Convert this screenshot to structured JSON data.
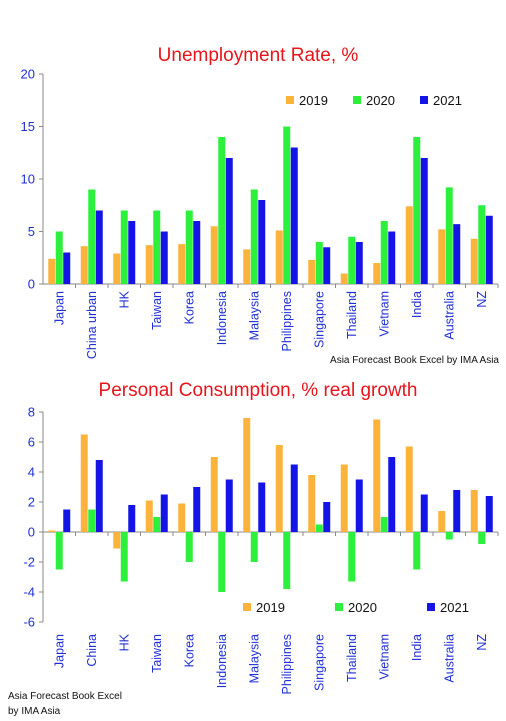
{
  "colors": {
    "2019": "#fbb33c",
    "2020": "#2cf03c",
    "2021": "#1414e6"
  },
  "chart_data": [
    {
      "type": "bar",
      "title": "Unemployment Rate, %",
      "categories": [
        "Japan",
        "China urban",
        "HK",
        "Taiwan",
        "Korea",
        "Indonesia",
        "Malaysia",
        "Philippines",
        "Singapore",
        "Thailand",
        "Vietnam",
        "India",
        "Australia",
        "NZ"
      ],
      "series": [
        {
          "name": "2019",
          "values": [
            2.4,
            3.6,
            2.9,
            3.7,
            3.8,
            5.5,
            3.3,
            5.1,
            2.3,
            1.0,
            2.0,
            7.4,
            5.2,
            4.3
          ]
        },
        {
          "name": "2020",
          "values": [
            5.0,
            9.0,
            7.0,
            7.0,
            7.0,
            14.0,
            9.0,
            15.0,
            4.0,
            4.5,
            6.0,
            14.0,
            9.2,
            7.5
          ]
        },
        {
          "name": "2021",
          "values": [
            3.0,
            7.0,
            6.0,
            5.0,
            6.0,
            12.0,
            8.0,
            13.0,
            3.5,
            4.0,
            5.0,
            12.0,
            5.7,
            6.5
          ]
        }
      ],
      "ylim": [
        0,
        20
      ],
      "yticks": [
        0,
        5,
        10,
        15,
        20
      ],
      "legend": "top-right",
      "source": "Asia Forecast Book Excel by IMA Asia"
    },
    {
      "type": "bar",
      "title": "Personal Consumption, % real growth",
      "categories": [
        "Japan",
        "China",
        "HK",
        "Taiwan",
        "Korea",
        "Indonesia",
        "Malaysia",
        "Philippines",
        "Singapore",
        "Thailand",
        "Vietnam",
        "India",
        "Australia",
        "NZ"
      ],
      "series": [
        {
          "name": "2019",
          "values": [
            0.1,
            6.5,
            -1.1,
            2.1,
            1.9,
            5.0,
            7.6,
            5.8,
            3.8,
            4.5,
            7.5,
            5.7,
            1.4,
            2.8
          ]
        },
        {
          "name": "2020",
          "values": [
            -2.5,
            1.5,
            -3.3,
            1.0,
            -2.0,
            -4.0,
            -2.0,
            -3.8,
            0.5,
            -3.3,
            1.0,
            -2.5,
            -0.5,
            -0.8
          ]
        },
        {
          "name": "2021",
          "values": [
            1.5,
            4.8,
            1.8,
            2.5,
            3.0,
            3.5,
            3.3,
            4.5,
            2.0,
            3.5,
            5.0,
            2.5,
            2.8,
            2.4
          ]
        }
      ],
      "ylim": [
        -6,
        8
      ],
      "yticks": [
        -6,
        -4,
        -2,
        0,
        2,
        4,
        6,
        8
      ],
      "legend": "bottom-right",
      "source_line1": "Asia Forecast Book Excel",
      "source_line2": "by IMA Asia"
    }
  ]
}
